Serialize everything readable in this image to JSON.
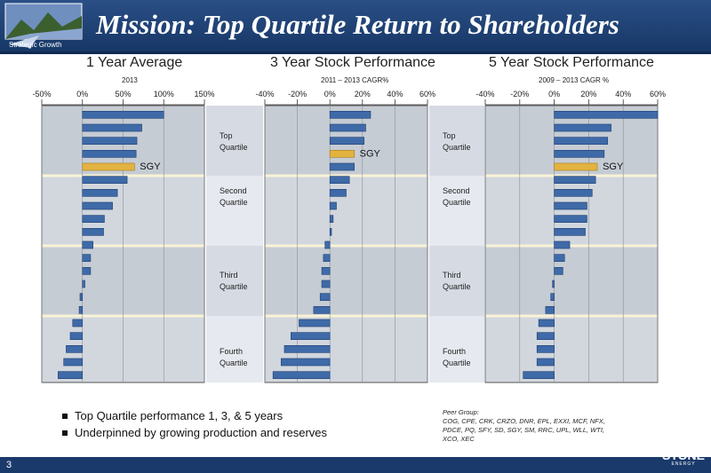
{
  "header": {
    "title": "Mission:  Top Quartile Return to Shareholders",
    "logo_text": "Strategic Growth"
  },
  "page_number": "3",
  "brand": {
    "name": "STONE",
    "tag": "ENERGY"
  },
  "quartile_labels": {
    "top": [
      "Top",
      "Quartile"
    ],
    "second": [
      "Second",
      "Quartile"
    ],
    "third": [
      "Third",
      "Quartile"
    ],
    "fourth": [
      "Fourth",
      "Quartile"
    ]
  },
  "bullets": [
    "Top Quartile performance 1, 3, & 5 years",
    "Underpinned by growing production and reserves"
  ],
  "peer_group": {
    "label": "Peer Group:",
    "text": "COG, CPE, CRK, CRZO, DNR, EPL, EXXI, MCF, NFX, PDCE, PQ, SFY, SD, SGY, SM, RRC, UPL, WLL, WTI, XCO, XEC"
  },
  "colors": {
    "bar": "#3f6aa8",
    "highlight": "#e3b341",
    "plot_bg": "#c8cdd4",
    "band": "#dfe4ec"
  },
  "chart_data": [
    {
      "type": "bar",
      "title": "1 Year Average",
      "subtitle": "2013",
      "xlim": [
        -50,
        150
      ],
      "ticks": [
        "-50%",
        "0%",
        "50%",
        "100%",
        "150%"
      ],
      "tick_values": [
        -50,
        0,
        50,
        100,
        150
      ],
      "highlight_label": "SGY",
      "highlight_index": 4,
      "values": [
        100,
        73,
        67,
        66,
        64,
        55,
        43,
        37,
        27,
        26,
        13,
        10,
        10,
        3,
        -3,
        -4,
        -12,
        -15,
        -20,
        -23,
        -30
      ]
    },
    {
      "type": "bar",
      "title": "3 Year Stock Performance",
      "subtitle": "2011 – 2013  CAGR%",
      "xlim": [
        -40,
        60
      ],
      "ticks": [
        "-40%",
        "-20%",
        "0%",
        "20%",
        "40%",
        "60%"
      ],
      "tick_values": [
        -40,
        -20,
        0,
        20,
        40,
        60
      ],
      "highlight_label": "SGY",
      "highlight_index": 3,
      "values": [
        25,
        22,
        21,
        15,
        15,
        12,
        10,
        4,
        2,
        1,
        -3,
        -4,
        -5,
        -5,
        -6,
        -10,
        -19,
        -24,
        -28,
        -30,
        -35
      ]
    },
    {
      "type": "bar",
      "title": "5 Year Stock Performance",
      "subtitle": "2009 – 2013  CAGR %",
      "xlim": [
        -40,
        60
      ],
      "ticks": [
        "-40%",
        "-20%",
        "0%",
        "20%",
        "40%",
        "60%"
      ],
      "tick_values": [
        -40,
        -20,
        0,
        20,
        40,
        60
      ],
      "highlight_label": "SGY",
      "highlight_index": 4,
      "values": [
        60,
        33,
        31,
        29,
        25,
        24,
        22,
        19,
        19,
        18,
        9,
        6,
        5,
        -1,
        -2,
        -5,
        -9,
        -10,
        -10,
        -10,
        -18
      ]
    }
  ]
}
